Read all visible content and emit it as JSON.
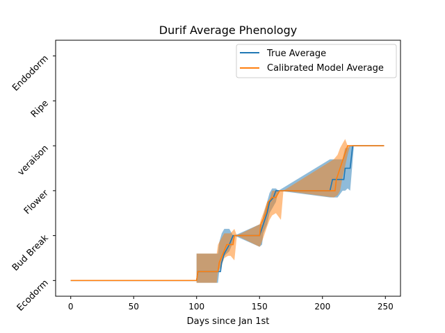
{
  "chart_data": {
    "type": "line",
    "title": "Durif Average Phenology",
    "xlabel": "Days since Jan 1st",
    "ylabel": "",
    "xlim": [
      -12,
      262
    ],
    "ylim": [
      -0.35,
      5.35
    ],
    "xticks": [
      0,
      50,
      100,
      150,
      200,
      250
    ],
    "yticks": [
      {
        "value": 0,
        "label": "Ecodorm"
      },
      {
        "value": 1,
        "label": "Bud Break"
      },
      {
        "value": 2,
        "label": "Flower"
      },
      {
        "value": 3,
        "label": "veraison"
      },
      {
        "value": 4,
        "label": "Ripe"
      },
      {
        "value": 5,
        "label": "Endodorm"
      }
    ],
    "grid": false,
    "legend": "top-right",
    "series": [
      {
        "name": "True Average",
        "color": "#1f77b4",
        "points": [
          [
            0,
            0
          ],
          [
            100,
            0
          ],
          [
            101,
            0.2
          ],
          [
            119,
            0.2
          ],
          [
            120,
            0.4
          ],
          [
            122,
            0.6
          ],
          [
            126,
            0.8
          ],
          [
            129,
            1
          ],
          [
            150,
            1
          ],
          [
            153,
            1.25
          ],
          [
            156,
            1.5
          ],
          [
            158,
            1.75
          ],
          [
            161,
            1.85
          ],
          [
            163,
            2
          ],
          [
            206,
            2
          ],
          [
            208,
            2.25
          ],
          [
            217,
            2.25
          ],
          [
            218,
            2.5
          ],
          [
            222,
            2.5
          ],
          [
            224,
            3
          ],
          [
            249,
            3
          ]
        ],
        "band": [
          [
            100,
            -0.05,
            0.6
          ],
          [
            117,
            -0.05,
            0.6
          ],
          [
            118,
            0.2,
            0.85
          ],
          [
            120,
            0.35,
            1.05
          ],
          [
            122,
            0.55,
            1.15
          ],
          [
            126,
            0.65,
            1.15
          ],
          [
            129,
            0.85,
            1.0
          ],
          [
            130,
            1.0,
            1.0
          ],
          [
            150,
            0.75,
            1.25
          ],
          [
            152,
            0.8,
            1.25
          ],
          [
            153,
            1.05,
            1.45
          ],
          [
            156,
            1.25,
            1.75
          ],
          [
            158,
            1.5,
            1.95
          ],
          [
            160,
            1.6,
            2.05
          ],
          [
            163,
            1.75,
            2.05
          ],
          [
            165,
            2.0,
            2.0
          ],
          [
            206,
            1.85,
            2.7
          ],
          [
            212,
            1.85,
            2.7
          ],
          [
            216,
            2.0,
            2.7
          ],
          [
            218,
            2.0,
            2.95
          ],
          [
            220,
            2.05,
            2.95
          ],
          [
            222,
            2.0,
            3.0
          ],
          [
            225,
            3.0,
            3.0
          ]
        ]
      },
      {
        "name": "Calibrated Model Average",
        "color": "#ff7f0e",
        "points": [
          [
            0,
            0
          ],
          [
            100,
            0
          ],
          [
            101,
            0.2
          ],
          [
            117,
            0.2
          ],
          [
            118,
            0.4
          ],
          [
            121,
            0.6
          ],
          [
            124,
            0.8
          ],
          [
            127,
            0.8
          ],
          [
            129,
            0.8
          ],
          [
            130,
            1
          ],
          [
            150,
            1
          ],
          [
            151,
            1.25
          ],
          [
            155,
            1.5
          ],
          [
            157,
            1.75
          ],
          [
            160,
            1.85
          ],
          [
            163,
            1.85
          ],
          [
            166,
            2
          ],
          [
            210,
            2
          ],
          [
            211,
            2.25
          ],
          [
            214,
            2.5
          ],
          [
            217,
            2.75
          ],
          [
            220,
            3
          ],
          [
            249,
            3
          ]
        ],
        "band": [
          [
            100,
            -0.05,
            0.6
          ],
          [
            116,
            -0.05,
            0.6
          ],
          [
            117,
            0.2,
            0.8
          ],
          [
            120,
            0.35,
            0.95
          ],
          [
            122,
            0.5,
            1.05
          ],
          [
            125,
            0.55,
            1.05
          ],
          [
            127,
            0.55,
            1.05
          ],
          [
            130,
            0.45,
            1.15
          ],
          [
            132,
            1.0,
            1.0
          ],
          [
            150,
            0.75,
            1.25
          ],
          [
            151,
            0.8,
            1.35
          ],
          [
            153,
            0.95,
            1.5
          ],
          [
            156,
            1.2,
            1.75
          ],
          [
            158,
            1.35,
            1.8
          ],
          [
            160,
            1.45,
            2.0
          ],
          [
            163,
            1.5,
            2.0
          ],
          [
            167,
            1.35,
            2.0
          ],
          [
            169,
            2.0,
            2.0
          ],
          [
            209,
            1.85,
            2.7
          ],
          [
            212,
            1.9,
            2.8
          ],
          [
            214,
            2.0,
            2.95
          ],
          [
            216,
            2.3,
            3.05
          ],
          [
            218,
            2.55,
            3.15
          ],
          [
            220,
            2.8,
            3.0
          ],
          [
            222,
            3.0,
            3.0
          ]
        ]
      }
    ]
  }
}
